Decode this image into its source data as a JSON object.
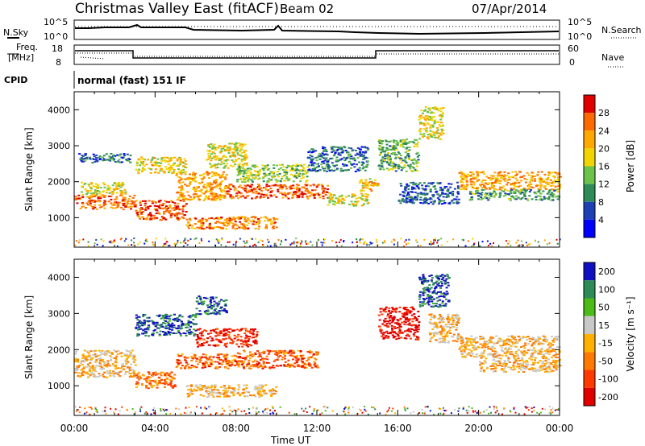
{
  "header": {
    "station": "Christmas Valley East (fitACF)",
    "beam": "Beam 02",
    "date": "07/Apr/2014"
  },
  "mini_panels": {
    "nsky_label": "N.Sky",
    "nsky_ticks": [
      "10^5",
      "10^0"
    ],
    "nsearch_label": "N.Search",
    "nsearch_ticks": [
      "10^5",
      "10^0"
    ],
    "freq_label_1": "Freq.",
    "freq_label_2": "[MHz]",
    "freq_ticks": [
      "18",
      "8"
    ],
    "nave_label": "Nave",
    "nave_ticks": [
      "60",
      "0"
    ],
    "cpid_label": "CPID",
    "cpid_text": "normal (fast) 151 IF"
  },
  "chart_data": [
    {
      "type": "heatmap",
      "title": "",
      "ylabel": "Slant Range [km]",
      "yticks": [
        "1000",
        "2000",
        "3000",
        "4000"
      ],
      "ylim": [
        180,
        4500
      ],
      "colorbar_label": "Power [dB]",
      "colorbar_ticks": [
        "28",
        "24",
        "20",
        "16",
        "12",
        "8",
        "4"
      ],
      "colors": [
        "#e00000",
        "#ff6a00",
        "#ffa800",
        "#f2d400",
        "#6cc24a",
        "#2e8b57",
        "#1f3fb5",
        "#0000ff"
      ],
      "regions": [
        {
          "t": [
            0.0,
            3.0
          ],
          "r": [
            1250,
            1650
          ],
          "level": 0.8
        },
        {
          "t": [
            0.3,
            2.5
          ],
          "r": [
            1650,
            2000
          ],
          "level": 0.55
        },
        {
          "t": [
            0.2,
            2.8
          ],
          "r": [
            2550,
            2800
          ],
          "level": 0.25
        },
        {
          "t": [
            3.0,
            5.5
          ],
          "r": [
            950,
            1500
          ],
          "level": 0.85
        },
        {
          "t": [
            3.0,
            5.5
          ],
          "r": [
            2250,
            2700
          ],
          "level": 0.6
        },
        {
          "t": [
            5.0,
            7.5
          ],
          "r": [
            1500,
            2300
          ],
          "level": 0.7
        },
        {
          "t": [
            5.5,
            10.0
          ],
          "r": [
            700,
            1050
          ],
          "level": 0.75
        },
        {
          "t": [
            6.5,
            8.5
          ],
          "r": [
            2400,
            3100
          ],
          "level": 0.55
        },
        {
          "t": [
            7.5,
            12.5
          ],
          "r": [
            1550,
            1950
          ],
          "level": 0.85
        },
        {
          "t": [
            8.0,
            11.5
          ],
          "r": [
            2000,
            2500
          ],
          "level": 0.45
        },
        {
          "t": [
            12.5,
            14.5
          ],
          "r": [
            1350,
            1700
          ],
          "level": 0.55
        },
        {
          "t": [
            11.5,
            14.5
          ],
          "r": [
            2300,
            3000
          ],
          "level": 0.25
        },
        {
          "t": [
            14.0,
            15.0
          ],
          "r": [
            1750,
            2100
          ],
          "level": 0.65
        },
        {
          "t": [
            15.0,
            17.0
          ],
          "r": [
            2300,
            3200
          ],
          "level": 0.4
        },
        {
          "t": [
            16.0,
            19.0
          ],
          "r": [
            1400,
            2000
          ],
          "level": 0.2
        },
        {
          "t": [
            17.0,
            18.2
          ],
          "r": [
            3200,
            4100
          ],
          "level": 0.55
        },
        {
          "t": [
            19.0,
            24.0
          ],
          "r": [
            1800,
            2300
          ],
          "level": 0.7
        },
        {
          "t": [
            19.5,
            24.0
          ],
          "r": [
            1500,
            1800
          ],
          "level": 0.35
        }
      ]
    },
    {
      "type": "heatmap",
      "title": "",
      "ylabel": "Slant Range [km]",
      "yticks": [
        "1000",
        "2000",
        "3000",
        "4000"
      ],
      "ylim": [
        180,
        4500
      ],
      "colorbar_label": "Velocity [m s⁻¹]",
      "colorbar_ticks": [
        "200",
        "100",
        "50",
        "15",
        "-15",
        "-50",
        "-100",
        "-200"
      ],
      "colors": [
        "#1010c0",
        "#2e8b57",
        "#4cbb17",
        "#c8c8c8",
        "#ffb000",
        "#ff7a00",
        "#ff3a00",
        "#e00000"
      ],
      "regions": [
        {
          "t": [
            0.0,
            3.0
          ],
          "r": [
            1250,
            2000
          ],
          "level": 0.45
        },
        {
          "t": [
            3.0,
            5.0
          ],
          "r": [
            950,
            1400
          ],
          "level": 0.3
        },
        {
          "t": [
            3.0,
            6.0
          ],
          "r": [
            2400,
            3000
          ],
          "level": 0.9
        },
        {
          "t": [
            6.0,
            7.5
          ],
          "r": [
            3000,
            3500
          ],
          "level": 0.9
        },
        {
          "t": [
            5.0,
            8.0
          ],
          "r": [
            1500,
            1900
          ],
          "level": 0.25
        },
        {
          "t": [
            6.0,
            9.0
          ],
          "r": [
            2100,
            2600
          ],
          "level": 0.1
        },
        {
          "t": [
            8.0,
            12.0
          ],
          "r": [
            1500,
            2000
          ],
          "level": 0.25
        },
        {
          "t": [
            5.5,
            10.0
          ],
          "r": [
            700,
            1050
          ],
          "level": 0.45
        },
        {
          "t": [
            15.0,
            17.0
          ],
          "r": [
            2300,
            3200
          ],
          "level": 0.05
        },
        {
          "t": [
            17.0,
            18.5
          ],
          "r": [
            3200,
            4100
          ],
          "level": 0.9
        },
        {
          "t": [
            17.5,
            19.0
          ],
          "r": [
            2200,
            3000
          ],
          "level": 0.45
        },
        {
          "t": [
            19.0,
            24.0
          ],
          "r": [
            1800,
            2400
          ],
          "level": 0.45
        },
        {
          "t": [
            20.0,
            24.0
          ],
          "r": [
            1400,
            1800
          ],
          "level": 0.45
        }
      ]
    }
  ],
  "x_axis": {
    "label": "Time UT",
    "ticks": [
      "00:00",
      "04:00",
      "08:00",
      "12:00",
      "16:00",
      "20:00",
      "00:00"
    ]
  }
}
